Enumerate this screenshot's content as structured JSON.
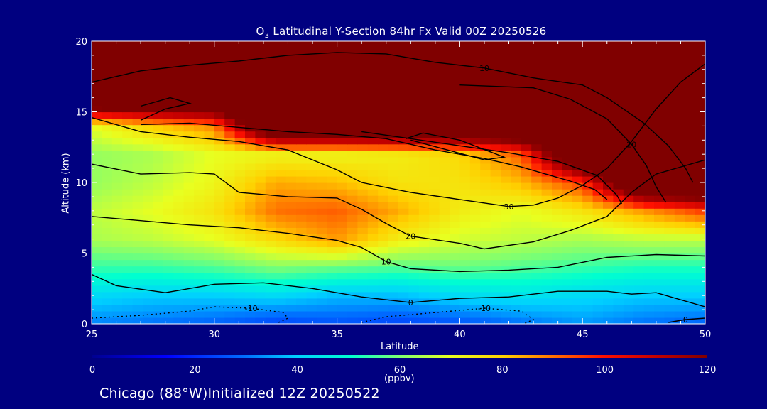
{
  "chart_data": {
    "type": "heatmap",
    "title_prefix": "O",
    "title_subscript": "3",
    "title_rest": " Latitudinal Y-Section 84hr  Fx Valid 00Z 20250526",
    "xlabel": "Latitude",
    "ylabel": "Altitude (km)",
    "xlim": [
      25,
      50
    ],
    "ylim": [
      0,
      20
    ],
    "x_ticks": [
      25,
      30,
      35,
      40,
      45,
      50
    ],
    "y_ticks": [
      0,
      5,
      10,
      15,
      20
    ],
    "colorbar": {
      "min": 0,
      "max": 120,
      "ticks": [
        0,
        20,
        40,
        60,
        80,
        100,
        120
      ],
      "units": "(ppbv)"
    },
    "field_samples": {
      "x": [
        25,
        27.5,
        30,
        32.5,
        35,
        37.5,
        40,
        42.5,
        45,
        47.5,
        50
      ],
      "y": [
        0,
        2,
        4,
        6,
        8,
        10,
        12,
        14,
        16,
        18,
        20
      ],
      "values": [
        [
          32,
          30,
          28,
          24,
          26,
          24,
          26,
          30,
          34,
          30,
          28
        ],
        [
          42,
          40,
          40,
          42,
          38,
          38,
          42,
          44,
          42,
          40,
          40
        ],
        [
          54,
          54,
          56,
          60,
          58,
          56,
          58,
          56,
          54,
          52,
          52
        ],
        [
          64,
          66,
          70,
          78,
          86,
          74,
          68,
          66,
          64,
          66,
          66
        ],
        [
          66,
          70,
          76,
          90,
          92,
          84,
          74,
          70,
          76,
          86,
          96
        ],
        [
          62,
          66,
          72,
          84,
          82,
          76,
          76,
          82,
          96,
          150,
          150
        ],
        [
          62,
          64,
          70,
          72,
          72,
          74,
          78,
          92,
          150,
          150,
          150
        ],
        [
          70,
          80,
          88,
          150,
          150,
          150,
          150,
          150,
          150,
          150,
          150
        ],
        [
          150,
          150,
          150,
          150,
          150,
          150,
          150,
          150,
          150,
          150,
          150
        ],
        [
          150,
          150,
          150,
          150,
          150,
          150,
          150,
          150,
          150,
          150,
          150
        ],
        [
          150,
          150,
          150,
          150,
          150,
          150,
          150,
          150,
          150,
          150,
          150
        ]
      ]
    },
    "contour_labels": [
      "0",
      "-10",
      "10",
      "20",
      "30"
    ],
    "contours": [
      {
        "label": "0",
        "points": [
          [
            25,
            3.5
          ],
          [
            26,
            2.7
          ],
          [
            28,
            2.2
          ],
          [
            30,
            2.8
          ],
          [
            32,
            2.9
          ],
          [
            34,
            2.5
          ],
          [
            36,
            1.9
          ],
          [
            38,
            1.5
          ],
          [
            40,
            1.8
          ],
          [
            42,
            1.9
          ],
          [
            44,
            2.3
          ],
          [
            46,
            2.3
          ],
          [
            47,
            2.1
          ],
          [
            48,
            2.2
          ],
          [
            50,
            1.2
          ]
        ]
      },
      {
        "label": "0",
        "points": [
          [
            48.5,
            0.1
          ],
          [
            49.2,
            0.3
          ],
          [
            50,
            0.4
          ]
        ]
      },
      {
        "label": "10",
        "points": [
          [
            25,
            7.6
          ],
          [
            27,
            7.3
          ],
          [
            29,
            7.0
          ],
          [
            31,
            6.8
          ],
          [
            33,
            6.4
          ],
          [
            35,
            5.9
          ],
          [
            36,
            5.4
          ],
          [
            37,
            4.4
          ],
          [
            38,
            3.9
          ],
          [
            40,
            3.7
          ],
          [
            42,
            3.8
          ],
          [
            44,
            4.0
          ],
          [
            46,
            4.7
          ],
          [
            48,
            4.9
          ],
          [
            50,
            4.8
          ]
        ]
      },
      {
        "label": "20",
        "points": [
          [
            25,
            11.3
          ],
          [
            27,
            10.6
          ],
          [
            29,
            10.7
          ],
          [
            30,
            10.6
          ],
          [
            31,
            9.3
          ],
          [
            33,
            9.0
          ],
          [
            35,
            8.9
          ],
          [
            36,
            8.1
          ],
          [
            37,
            7.1
          ],
          [
            38,
            6.2
          ],
          [
            40,
            5.7
          ],
          [
            41,
            5.3
          ],
          [
            43,
            5.8
          ],
          [
            44.5,
            6.6
          ],
          [
            46,
            7.6
          ],
          [
            47,
            9.3
          ],
          [
            48,
            10.6
          ],
          [
            50,
            11.6
          ]
        ]
      },
      {
        "label": "30",
        "points": [
          [
            25,
            14.6
          ],
          [
            27,
            13.6
          ],
          [
            29,
            13.2
          ],
          [
            31,
            12.9
          ],
          [
            33,
            12.3
          ],
          [
            35,
            10.9
          ],
          [
            36,
            10.0
          ],
          [
            38,
            9.3
          ],
          [
            40,
            8.8
          ],
          [
            42,
            8.3
          ],
          [
            43,
            8.4
          ],
          [
            44,
            8.9
          ],
          [
            45,
            9.8
          ],
          [
            46,
            11.0
          ],
          [
            47,
            12.9
          ],
          [
            48,
            15.2
          ],
          [
            49,
            17.1
          ],
          [
            50,
            18.4
          ]
        ]
      },
      {
        "label": "10",
        "points": [
          [
            25,
            17.1
          ],
          [
            27,
            17.9
          ],
          [
            29,
            18.3
          ],
          [
            31,
            18.6
          ],
          [
            33,
            19.0
          ],
          [
            35,
            19.2
          ],
          [
            37,
            19.1
          ],
          [
            39,
            18.5
          ],
          [
            41,
            18.1
          ],
          [
            43,
            17.4
          ],
          [
            45,
            16.9
          ],
          [
            46,
            16.0
          ],
          [
            47.5,
            14.2
          ],
          [
            48.5,
            12.6
          ],
          [
            49.2,
            11.0
          ],
          [
            49.5,
            10.0
          ]
        ]
      },
      {
        "label": "20",
        "points": [
          [
            40,
            16.9
          ],
          [
            43,
            16.7
          ],
          [
            44.5,
            15.9
          ],
          [
            46,
            14.5
          ],
          [
            47,
            12.7
          ],
          [
            47.6,
            11.2
          ],
          [
            48,
            9.7
          ],
          [
            48.4,
            8.6
          ]
        ]
      },
      {
        "label": "",
        "points": [
          [
            36,
            13.6
          ],
          [
            38,
            13.1
          ],
          [
            40,
            12.6
          ],
          [
            42,
            12.1
          ],
          [
            44,
            11.5
          ],
          [
            45.6,
            10.5
          ],
          [
            46.4,
            9.1
          ],
          [
            46.6,
            8.5
          ]
        ]
      },
      {
        "label": "",
        "points": [
          [
            27,
            14.1
          ],
          [
            29,
            14.2
          ],
          [
            31,
            13.9
          ],
          [
            33,
            13.6
          ],
          [
            35,
            13.4
          ],
          [
            37,
            13.1
          ],
          [
            39,
            12.3
          ],
          [
            41,
            11.7
          ],
          [
            42.5,
            11.1
          ],
          [
            44.5,
            10.1
          ],
          [
            45.5,
            9.5
          ],
          [
            46,
            8.8
          ]
        ]
      },
      {
        "label": "",
        "points": [
          [
            38,
            13.0
          ],
          [
            39.5,
            12.3
          ],
          [
            41,
            11.6
          ],
          [
            41.8,
            11.8
          ],
          [
            40,
            13.0
          ],
          [
            38.5,
            13.5
          ],
          [
            37.8,
            13.1
          ]
        ]
      },
      {
        "label": "",
        "points": [
          [
            27,
            14.4
          ],
          [
            28,
            15.2
          ],
          [
            29,
            15.6
          ],
          [
            28.2,
            16.0
          ],
          [
            27,
            15.4
          ]
        ]
      }
    ],
    "dashed_contours": [
      {
        "label": "-10",
        "points": [
          [
            25,
            0.4
          ],
          [
            27,
            0.6
          ],
          [
            29,
            0.9
          ],
          [
            30,
            1.2
          ],
          [
            31.5,
            1.1
          ],
          [
            32.8,
            0.8
          ],
          [
            33,
            0.4
          ],
          [
            32.5,
            0.0
          ]
        ]
      },
      {
        "label": "-10",
        "points": [
          [
            36,
            0.1
          ],
          [
            37,
            0.5
          ],
          [
            39,
            0.8
          ],
          [
            41,
            1.1
          ],
          [
            42.5,
            0.9
          ],
          [
            43,
            0.3
          ],
          [
            42.6,
            0.0
          ]
        ]
      }
    ]
  },
  "footer": "Chicago (88°W)Initialized 12Z 20250522",
  "colors": {
    "background": "#000080",
    "foreground": "#ffffff",
    "contour": "#000000",
    "saturated": "#800000"
  }
}
